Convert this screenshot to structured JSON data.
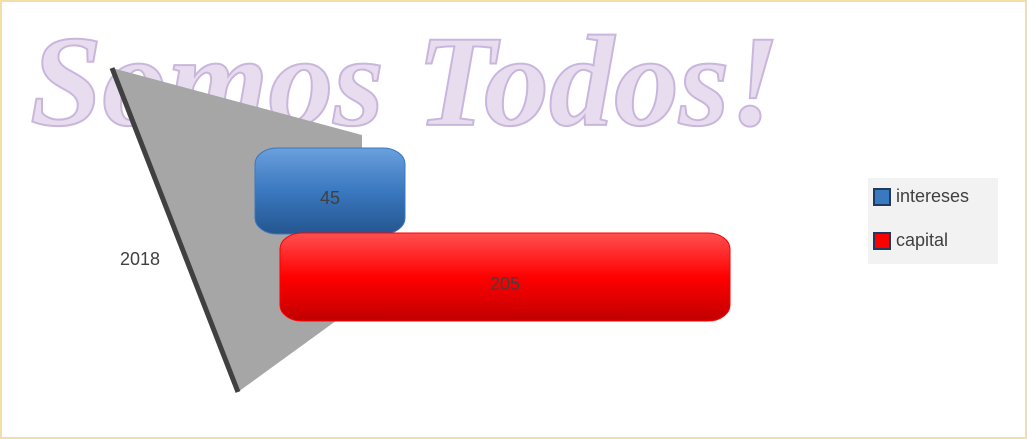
{
  "chart_data": {
    "type": "bar",
    "orientation": "horizontal",
    "watermark": "Somos Todos!",
    "categories": [
      "2018"
    ],
    "series": [
      {
        "name": "intereses",
        "color": "#3a78c0",
        "values": [
          45
        ]
      },
      {
        "name": "capital",
        "color": "#ff0000",
        "values": [
          205
        ]
      }
    ],
    "legend": "right"
  }
}
